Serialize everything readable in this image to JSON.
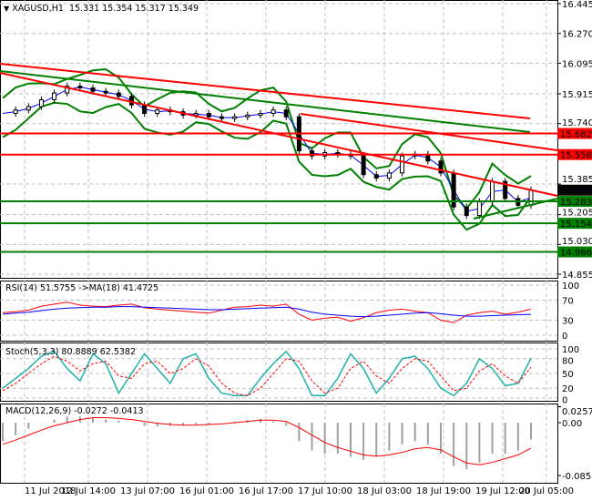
{
  "header": {
    "symbol": "XAGUSD,H1",
    "open": "15.331",
    "high": "15.354",
    "low": "15.317",
    "close": "15.349"
  },
  "price_axis": [
    "16.445",
    "16.270",
    "16.095",
    "15.915",
    "15.740",
    "15.385",
    "15.205",
    "15.030",
    "14.855"
  ],
  "levels": [
    {
      "value": "15.682",
      "color": "#ff0000"
    },
    {
      "value": "15.558",
      "color": "#ff0000"
    },
    {
      "value": "15.349",
      "color": "#000000"
    },
    {
      "value": "15.283",
      "color": "#008000"
    },
    {
      "value": "15.154",
      "color": "#008000"
    },
    {
      "value": "14.986",
      "color": "#008000"
    }
  ],
  "time_axis": [
    "11 Jul 2018",
    "12 Jul 14:00",
    "13 Jul 07:00",
    "16 Jul 01:00",
    "16 Jul 17:00",
    "17 Jul 10:00",
    "18 Jul 03:00",
    "18 Jul 19:00",
    "19 Jul 12:00",
    "20 Jul 05:00"
  ],
  "price_series": [
    15.8,
    15.82,
    15.84,
    15.88,
    15.92,
    15.96,
    15.95,
    15.93,
    15.92,
    15.9,
    15.85,
    15.8,
    15.82,
    15.81,
    15.79,
    15.8,
    15.78,
    15.77,
    15.78,
    15.79,
    15.8,
    15.82,
    15.78,
    15.58,
    15.55,
    15.57,
    15.56,
    15.55,
    15.44,
    15.42,
    15.45,
    15.55,
    15.56,
    15.52,
    15.45,
    15.25,
    15.2,
    15.28,
    15.4,
    15.3,
    15.26,
    15.35
  ],
  "rsi": {
    "label": "RSI(14) 51.5755  ->MA(18) 41.4725",
    "axis": [
      "100",
      "70",
      "30",
      "0"
    ],
    "values": [
      45,
      47,
      50,
      58,
      62,
      66,
      60,
      58,
      57,
      60,
      62,
      55,
      52,
      50,
      48,
      46,
      44,
      50,
      56,
      57,
      60,
      58,
      62,
      42,
      30,
      34,
      36,
      28,
      35,
      45,
      50,
      52,
      48,
      45,
      30,
      25,
      40,
      45,
      48,
      42,
      46,
      52
    ],
    "ma": [
      42,
      44,
      46,
      49,
      52,
      54,
      55,
      56,
      56,
      57,
      57,
      56,
      55,
      54,
      53,
      52,
      51,
      51,
      52,
      53,
      54,
      55,
      56,
      52,
      46,
      42,
      40,
      38,
      37,
      38,
      40,
      42,
      44,
      45,
      43,
      40,
      38,
      38,
      39,
      40,
      41,
      41.5
    ]
  },
  "stoch": {
    "label": "Stoch(5,3,3) 80.8889 62.5382",
    "axis": [
      "100",
      "80",
      "50",
      "20",
      "0"
    ],
    "k": [
      20,
      40,
      60,
      85,
      95,
      60,
      35,
      90,
      70,
      10,
      50,
      90,
      60,
      30,
      80,
      90,
      40,
      10,
      5,
      5,
      40,
      70,
      95,
      60,
      5,
      5,
      40,
      90,
      60,
      10,
      40,
      80,
      85,
      60,
      20,
      5,
      30,
      80,
      60,
      25,
      30,
      81
    ],
    "d": [
      15,
      30,
      50,
      70,
      85,
      75,
      55,
      70,
      75,
      45,
      40,
      70,
      75,
      50,
      60,
      80,
      65,
      30,
      10,
      5,
      20,
      50,
      80,
      75,
      35,
      10,
      20,
      60,
      75,
      45,
      30,
      60,
      80,
      75,
      45,
      15,
      20,
      55,
      70,
      45,
      30,
      62.5
    ]
  },
  "macd": {
    "label": "MACD(12,26,9) -0.0272 -0.0413",
    "axis": [
      "0.0257",
      "0.00",
      "-0.0852"
    ],
    "hist": [
      -0.03,
      -0.02,
      -0.01,
      0.0,
      0.005,
      0.01,
      0.01,
      0.008,
      0.005,
      0.003,
      0.0,
      -0.005,
      -0.006,
      -0.005,
      -0.004,
      -0.003,
      -0.002,
      0.0,
      0.002,
      0.004,
      0.006,
      0.002,
      -0.005,
      -0.03,
      -0.045,
      -0.05,
      -0.05,
      -0.055,
      -0.06,
      -0.055,
      -0.045,
      -0.035,
      -0.03,
      -0.035,
      -0.05,
      -0.07,
      -0.075,
      -0.065,
      -0.05,
      -0.05,
      -0.045,
      -0.027
    ],
    "signal": [
      -0.035,
      -0.028,
      -0.02,
      -0.012,
      -0.005,
      0.0,
      0.005,
      0.008,
      0.008,
      0.007,
      0.005,
      0.002,
      -0.001,
      -0.003,
      -0.004,
      -0.004,
      -0.003,
      -0.002,
      0.0,
      0.002,
      0.004,
      0.004,
      0.002,
      -0.008,
      -0.02,
      -0.032,
      -0.04,
      -0.046,
      -0.052,
      -0.054,
      -0.052,
      -0.048,
      -0.042,
      -0.04,
      -0.044,
      -0.055,
      -0.065,
      -0.068,
      -0.064,
      -0.058,
      -0.052,
      -0.041
    ]
  }
}
